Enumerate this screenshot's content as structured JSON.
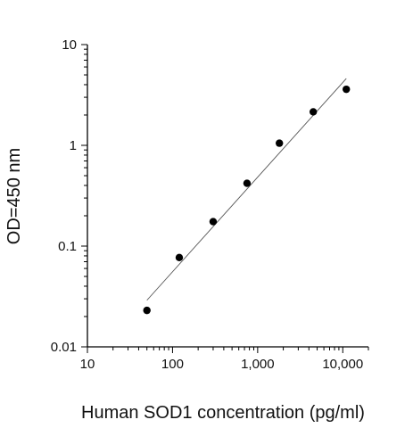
{
  "chart_data": {
    "type": "scatter",
    "title": "",
    "xlabel": "Human SOD1 concentration (pg/ml)",
    "ylabel": "OD=450 nm",
    "x_scale": "log",
    "y_scale": "log",
    "xlim": [
      10,
      20000
    ],
    "ylim": [
      0.01,
      10
    ],
    "grid": false,
    "x_ticks": [
      {
        "value": 10,
        "label": "10"
      },
      {
        "value": 100,
        "label": "100"
      },
      {
        "value": 1000,
        "label": "1,000"
      },
      {
        "value": 10000,
        "label": "10,000"
      }
    ],
    "y_ticks": [
      {
        "value": 0.01,
        "label": "0.01"
      },
      {
        "value": 0.1,
        "label": "0.1"
      },
      {
        "value": 1,
        "label": "1"
      },
      {
        "value": 10,
        "label": "10"
      }
    ],
    "points": {
      "x": [
        50,
        120,
        300,
        750,
        1800,
        4500,
        11000
      ],
      "y": [
        0.023,
        0.077,
        0.175,
        0.42,
        1.05,
        2.15,
        3.6
      ]
    },
    "fit_line": {
      "x": [
        50,
        11000
      ],
      "y": [
        0.029,
        4.6
      ]
    },
    "colors": {
      "points": "#000000",
      "fit_line": "#555555",
      "axis": "#000000"
    }
  }
}
